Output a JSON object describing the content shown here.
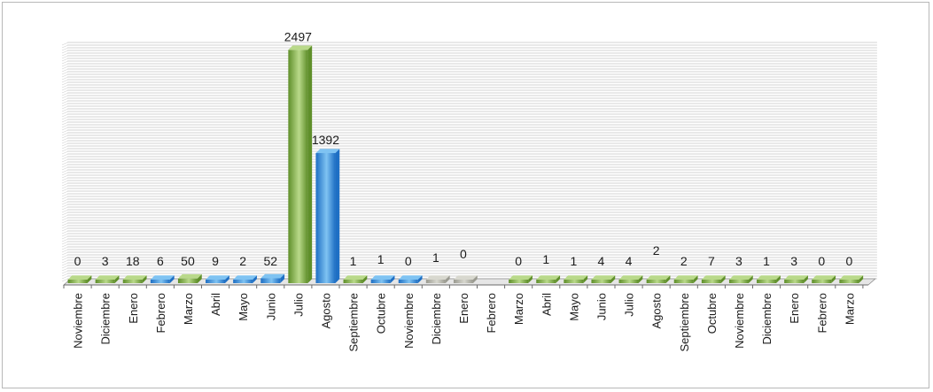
{
  "chart_data": {
    "type": "bar",
    "categories": [
      "Noviembre",
      "Diciembre",
      "Enero",
      "Febrero",
      "Marzo",
      "Abril",
      "Mayo",
      "Junio",
      "Julio",
      "Agosto",
      "Septiembre",
      "Octubre",
      "Noviembre",
      "Diciembre",
      "Enero",
      "Febrero",
      "Marzo",
      "Abril",
      "Mayo",
      "Junio",
      "Julio",
      "Agosto",
      "Septiembre",
      "Octubre",
      "Noviembre",
      "Diciembre",
      "Enero",
      "Febrero",
      "Marzo"
    ],
    "values": [
      0,
      3,
      18,
      6,
      50,
      9,
      2,
      52,
      2497,
      1392,
      1,
      1,
      0,
      1,
      0,
      null,
      0,
      1,
      1,
      4,
      4,
      2,
      2,
      7,
      3,
      1,
      3,
      0,
      0
    ],
    "bar_colors": [
      "green",
      "green",
      "green",
      "blue",
      "green",
      "blue",
      "blue",
      "blue",
      "green",
      "blue",
      "green",
      "blue",
      "blue",
      "gray",
      "gray",
      "green",
      "green",
      "green",
      "green",
      "green",
      "green",
      "green",
      "green",
      "green",
      "green",
      "green",
      "green",
      "green",
      "green"
    ],
    "title": "",
    "xlabel": "",
    "ylabel": "",
    "ylim": [
      0,
      2500
    ],
    "grid": true,
    "legend": "none",
    "colors": {
      "green": "#5f8f2a",
      "green_light": "#b9d98a",
      "blue": "#1e6fc4",
      "blue_light": "#7fc3f2",
      "gray": "#9a9a90",
      "gridline": "#c4c4c4",
      "floor": "#8c8c8c"
    }
  }
}
